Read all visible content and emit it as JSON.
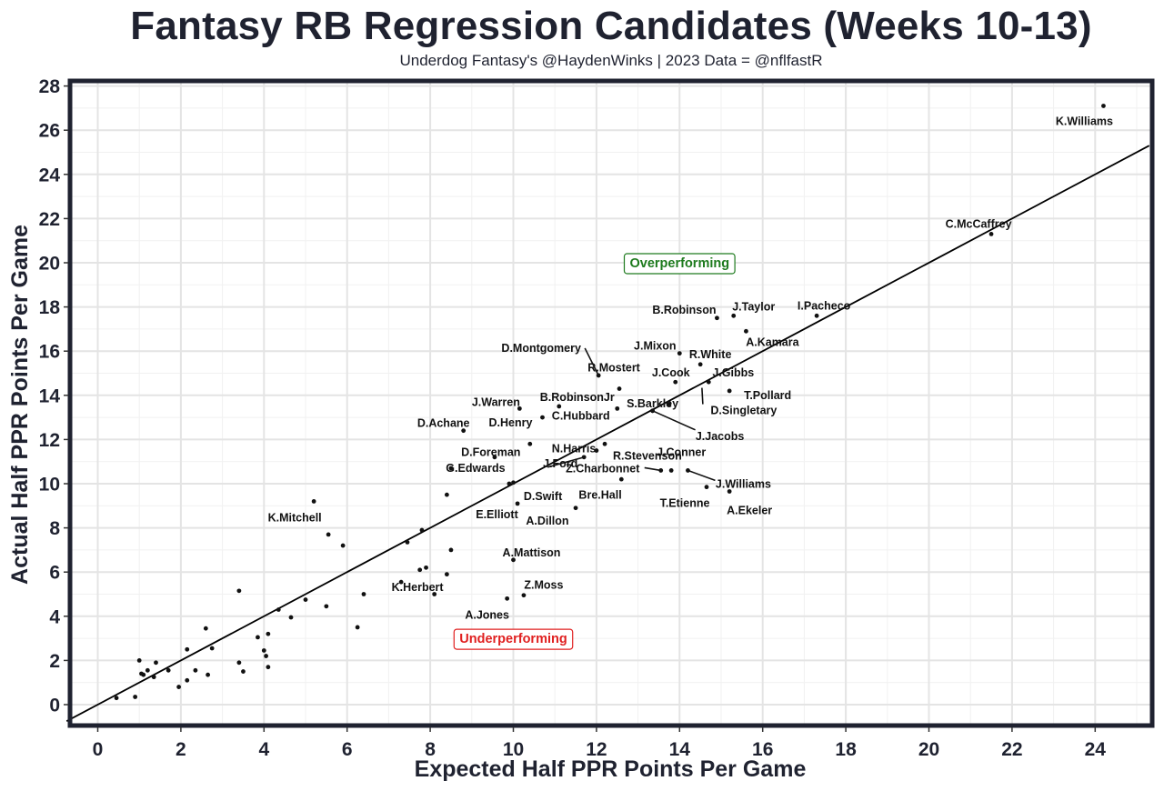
{
  "chart_data": {
    "type": "scatter",
    "title": "Fantasy RB Regression Candidates (Weeks 10-13)",
    "subtitle": "Underdog Fantasy's @HaydenWinks | 2023 Data = @nflfastR",
    "xlabel": "Expected Half PPR Points Per Game",
    "ylabel": "Actual Half PPR Points Per Game",
    "xlim": [
      -0.7,
      25.3
    ],
    "ylim": [
      -1.0,
      28.5
    ],
    "xticks": [
      0,
      2,
      4,
      6,
      8,
      10,
      12,
      14,
      16,
      18,
      20,
      22,
      24
    ],
    "yticks": [
      0,
      2,
      4,
      6,
      8,
      10,
      12,
      14,
      16,
      18,
      20,
      22,
      24,
      26,
      28
    ],
    "grid": true,
    "reference_line": "y = x",
    "annotations": [
      {
        "text": "Overperforming",
        "x": 14.0,
        "y": 20.0,
        "color": "#1d7a1d"
      },
      {
        "text": "Underperforming",
        "x": 10.0,
        "y": 3.0,
        "color": "#e02020"
      }
    ],
    "points": [
      {
        "x": 24.2,
        "y": 27.1,
        "label": "K.Williams"
      },
      {
        "x": 21.5,
        "y": 21.3,
        "label": "C.McCaffrey"
      },
      {
        "x": 17.3,
        "y": 17.6,
        "label": "I.Pacheco"
      },
      {
        "x": 15.3,
        "y": 17.6,
        "label": "J.Taylor"
      },
      {
        "x": 14.9,
        "y": 17.5,
        "label": "B.Robinson"
      },
      {
        "x": 15.6,
        "y": 16.9,
        "label": "A.Kamara"
      },
      {
        "x": 14.0,
        "y": 15.9,
        "label": "J.Mixon"
      },
      {
        "x": 14.5,
        "y": 15.4,
        "label": "R.White"
      },
      {
        "x": 13.9,
        "y": 14.6,
        "label": "J.Cook"
      },
      {
        "x": 14.7,
        "y": 14.6,
        "label": "J.Gibbs"
      },
      {
        "x": 15.2,
        "y": 14.2,
        "label": "T.Pollard"
      },
      {
        "x": 12.05,
        "y": 14.9,
        "label": "D.Montgomery"
      },
      {
        "x": 12.55,
        "y": 14.3,
        "label": "R.Mostert"
      },
      {
        "x": 13.35,
        "y": 13.3,
        "label": "S.Barkley"
      },
      {
        "x": 13.35,
        "y": 13.3,
        "label": "J.Jacobs"
      },
      {
        "x": 13.75,
        "y": 13.6,
        "label": "D.Singletary"
      },
      {
        "x": 11.1,
        "y": 13.5,
        "label": "B.RobinsonJr"
      },
      {
        "x": 12.5,
        "y": 13.4,
        "label": "C.Hubbard"
      },
      {
        "x": 10.15,
        "y": 13.4,
        "label": "J.Warren"
      },
      {
        "x": 10.7,
        "y": 13.0,
        "label": "D.Henry"
      },
      {
        "x": 8.8,
        "y": 12.4,
        "label": "D.Achane"
      },
      {
        "x": 10.4,
        "y": 11.8,
        "label": "D.Foreman"
      },
      {
        "x": 12.2,
        "y": 11.8,
        "label": "N.Harris"
      },
      {
        "x": 12.0,
        "y": 11.5,
        "label": "R.Stevenson"
      },
      {
        "x": 11.7,
        "y": 11.2,
        "label": "J.Ford"
      },
      {
        "x": 9.55,
        "y": 11.2,
        "label": "G.Edwards"
      },
      {
        "x": 13.8,
        "y": 10.6,
        "label": "J.Conner"
      },
      {
        "x": 13.55,
        "y": 10.6,
        "label": "Z.Charbonnet"
      },
      {
        "x": 14.2,
        "y": 10.6,
        "label": "J.Williams"
      },
      {
        "x": 14.65,
        "y": 9.85,
        "label": "T.Etienne"
      },
      {
        "x": 15.2,
        "y": 9.65,
        "label": "A.Ekeler"
      },
      {
        "x": 10.1,
        "y": 9.1,
        "label": "D.Swift"
      },
      {
        "x": 11.5,
        "y": 8.9,
        "label": "Bre.Hall"
      },
      {
        "x": 10.0,
        "y": 10.05,
        "label": "E.Elliott"
      },
      {
        "x": 9.9,
        "y": 10.0,
        "label": "A.Dillon"
      },
      {
        "x": 5.2,
        "y": 9.2,
        "label": "K.Mitchell"
      },
      {
        "x": 10.0,
        "y": 6.55,
        "label": "A.Mattison"
      },
      {
        "x": 7.3,
        "y": 5.55,
        "label": "K.Herbert"
      },
      {
        "x": 10.25,
        "y": 4.95,
        "label": "Z.Moss"
      },
      {
        "x": 9.85,
        "y": 4.8,
        "label": "A.Jones"
      },
      {
        "x": 12.6,
        "y": 10.2,
        "label": ""
      },
      {
        "x": 8.4,
        "y": 9.5,
        "label": ""
      },
      {
        "x": 8.5,
        "y": 10.7,
        "label": ""
      },
      {
        "x": 7.8,
        "y": 7.9,
        "label": ""
      },
      {
        "x": 7.45,
        "y": 7.35,
        "label": ""
      },
      {
        "x": 5.55,
        "y": 7.7,
        "label": ""
      },
      {
        "x": 5.9,
        "y": 7.2,
        "label": ""
      },
      {
        "x": 8.5,
        "y": 7.0,
        "label": ""
      },
      {
        "x": 7.75,
        "y": 6.1,
        "label": ""
      },
      {
        "x": 7.9,
        "y": 6.2,
        "label": ""
      },
      {
        "x": 8.4,
        "y": 5.9,
        "label": ""
      },
      {
        "x": 8.1,
        "y": 5.0,
        "label": ""
      },
      {
        "x": 6.4,
        "y": 5.0,
        "label": ""
      },
      {
        "x": 5.0,
        "y": 4.75,
        "label": ""
      },
      {
        "x": 5.5,
        "y": 4.45,
        "label": ""
      },
      {
        "x": 4.35,
        "y": 4.3,
        "label": ""
      },
      {
        "x": 4.65,
        "y": 3.95,
        "label": ""
      },
      {
        "x": 6.25,
        "y": 3.5,
        "label": ""
      },
      {
        "x": 3.4,
        "y": 5.15,
        "label": ""
      },
      {
        "x": 4.1,
        "y": 3.2,
        "label": ""
      },
      {
        "x": 3.85,
        "y": 3.05,
        "label": ""
      },
      {
        "x": 4.0,
        "y": 2.45,
        "label": ""
      },
      {
        "x": 4.05,
        "y": 2.2,
        "label": ""
      },
      {
        "x": 4.1,
        "y": 1.7,
        "label": ""
      },
      {
        "x": 3.4,
        "y": 1.9,
        "label": ""
      },
      {
        "x": 3.5,
        "y": 1.5,
        "label": ""
      },
      {
        "x": 2.6,
        "y": 3.45,
        "label": ""
      },
      {
        "x": 2.75,
        "y": 2.55,
        "label": ""
      },
      {
        "x": 2.15,
        "y": 2.5,
        "label": ""
      },
      {
        "x": 2.35,
        "y": 1.55,
        "label": ""
      },
      {
        "x": 2.15,
        "y": 1.1,
        "label": ""
      },
      {
        "x": 2.65,
        "y": 1.35,
        "label": ""
      },
      {
        "x": 1.95,
        "y": 0.8,
        "label": ""
      },
      {
        "x": 1.7,
        "y": 1.55,
        "label": ""
      },
      {
        "x": 1.4,
        "y": 1.9,
        "label": ""
      },
      {
        "x": 1.35,
        "y": 1.25,
        "label": ""
      },
      {
        "x": 1.2,
        "y": 1.55,
        "label": ""
      },
      {
        "x": 1.1,
        "y": 1.35,
        "label": ""
      },
      {
        "x": 1.05,
        "y": 1.4,
        "label": ""
      },
      {
        "x": 1.0,
        "y": 2.0,
        "label": ""
      },
      {
        "x": 0.9,
        "y": 0.35,
        "label": ""
      },
      {
        "x": 0.45,
        "y": 0.3,
        "label": ""
      }
    ]
  }
}
